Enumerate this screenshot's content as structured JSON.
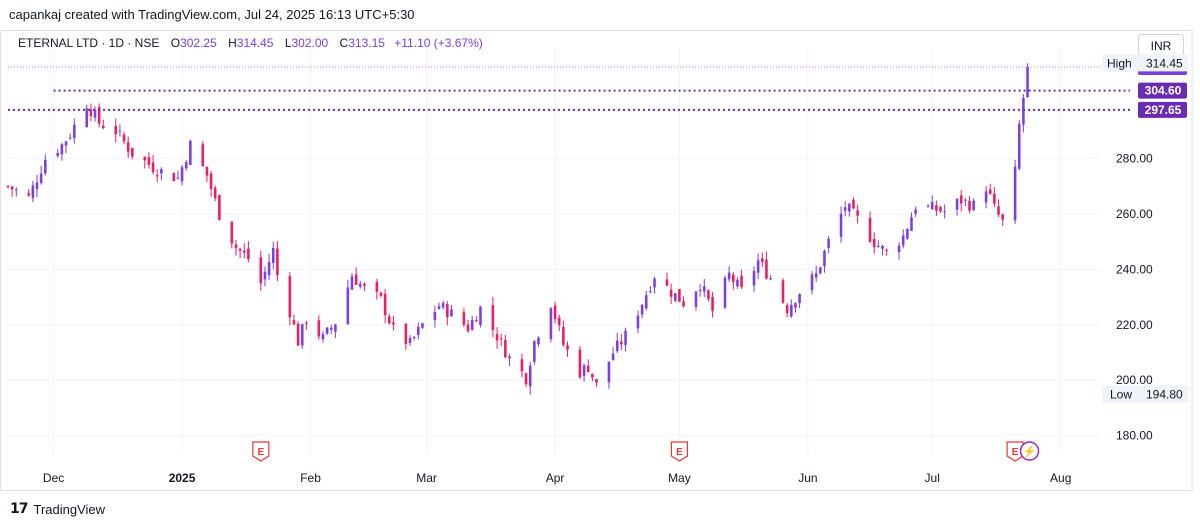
{
  "header": {
    "credit": "capankaj created with TradingView.com, Jul 24, 2025 16:13 UTC+5:30"
  },
  "legend": {
    "symbol": "ETERNAL LTD · 1D · NSE",
    "o_label": "O",
    "o_value": "302.25",
    "h_label": "H",
    "h_value": "314.45",
    "l_label": "L",
    "l_value": "302.00",
    "c_label": "C",
    "c_value": "313.15",
    "change": "+11.10 (+3.67%)"
  },
  "currency": "INR",
  "brand": {
    "logo": "17",
    "name": "TradingView"
  },
  "colors": {
    "up": "#7b3fe4",
    "down": "#e91e63",
    "grid": "#f0f3fa",
    "level": "#6a2bb3"
  },
  "chart_data": {
    "type": "candlestick",
    "title": "ETERNAL LTD · 1D · NSE",
    "ylim": [
      173,
      320
    ],
    "y_ticks": [
      "180.00",
      "200.00",
      "220.00",
      "240.00",
      "260.00",
      "280.00"
    ],
    "x_ticks": [
      {
        "label": "Dec",
        "bold": false,
        "at": "2024-12-01"
      },
      {
        "label": "2025",
        "bold": true,
        "at": "2025-01-01"
      },
      {
        "label": "Feb",
        "bold": false,
        "at": "2025-02-01"
      },
      {
        "label": "Mar",
        "bold": false,
        "at": "2025-03-01"
      },
      {
        "label": "Apr",
        "bold": false,
        "at": "2025-04-01"
      },
      {
        "label": "May",
        "bold": false,
        "at": "2025-05-01"
      },
      {
        "label": "Jun",
        "bold": false,
        "at": "2025-06-01"
      },
      {
        "label": "Jul",
        "bold": false,
        "at": "2025-07-01"
      },
      {
        "label": "Aug",
        "bold": false,
        "at": "2025-08-01"
      }
    ],
    "date_range": [
      "2024-11-20",
      "2025-08-10"
    ],
    "close_path": [
      [
        "2024-11-20",
        270
      ],
      [
        "2024-11-25",
        266
      ],
      [
        "2024-11-29",
        280
      ],
      [
        "2024-12-03",
        285
      ],
      [
        "2024-12-05",
        289
      ],
      [
        "2024-12-09",
        300
      ],
      [
        "2024-12-12",
        293
      ],
      [
        "2024-12-16",
        290
      ],
      [
        "2024-12-20",
        282
      ],
      [
        "2024-12-26",
        276
      ],
      [
        "2024-12-31",
        273
      ],
      [
        "2025-01-03",
        285
      ],
      [
        "2025-01-07",
        274
      ],
      [
        "2025-01-10",
        260
      ],
      [
        "2025-01-14",
        248
      ],
      [
        "2025-01-17",
        244
      ],
      [
        "2025-01-20",
        235
      ],
      [
        "2025-01-23",
        247
      ],
      [
        "2025-01-24",
        238
      ],
      [
        "2025-01-27",
        225
      ],
      [
        "2025-01-29",
        214
      ],
      [
        "2025-01-31",
        222
      ],
      [
        "2025-02-04",
        215
      ],
      [
        "2025-02-07",
        221
      ],
      [
        "2025-02-11",
        238
      ],
      [
        "2025-02-14",
        233
      ],
      [
        "2025-02-18",
        229
      ],
      [
        "2025-02-21",
        218
      ],
      [
        "2025-02-25",
        213
      ],
      [
        "2025-02-28",
        220
      ],
      [
        "2025-03-04",
        227
      ],
      [
        "2025-03-07",
        224
      ],
      [
        "2025-03-11",
        219
      ],
      [
        "2025-03-14",
        226
      ],
      [
        "2025-03-18",
        216
      ],
      [
        "2025-03-21",
        208
      ],
      [
        "2025-03-25",
        201
      ],
      [
        "2025-03-27",
        214
      ],
      [
        "2025-03-31",
        228
      ],
      [
        "2025-04-03",
        213
      ],
      [
        "2025-04-07",
        203
      ],
      [
        "2025-04-09",
        205
      ],
      [
        "2025-04-11",
        198
      ],
      [
        "2025-04-15",
        210
      ],
      [
        "2025-04-18",
        216
      ],
      [
        "2025-04-22",
        228
      ],
      [
        "2025-04-25",
        238
      ],
      [
        "2025-04-29",
        232
      ],
      [
        "2025-05-02",
        228
      ],
      [
        "2025-05-06",
        235
      ],
      [
        "2025-05-09",
        225
      ],
      [
        "2025-05-13",
        238
      ],
      [
        "2025-05-16",
        232
      ],
      [
        "2025-05-20",
        243
      ],
      [
        "2025-05-23",
        237
      ],
      [
        "2025-05-27",
        226
      ],
      [
        "2025-05-30",
        232
      ],
      [
        "2025-06-03",
        238
      ],
      [
        "2025-06-06",
        250
      ],
      [
        "2025-06-10",
        263
      ],
      [
        "2025-06-13",
        258
      ],
      [
        "2025-06-17",
        250
      ],
      [
        "2025-06-20",
        246
      ],
      [
        "2025-06-24",
        252
      ],
      [
        "2025-06-27",
        263
      ],
      [
        "2025-07-01",
        262
      ],
      [
        "2025-07-04",
        261
      ],
      [
        "2025-07-08",
        265
      ],
      [
        "2025-07-11",
        263
      ],
      [
        "2025-07-14",
        270
      ],
      [
        "2025-07-16",
        262
      ],
      [
        "2025-07-18",
        257
      ],
      [
        "2025-07-21",
        275
      ],
      [
        "2025-07-22",
        292
      ],
      [
        "2025-07-23",
        302
      ],
      [
        "2025-07-24",
        313.15
      ]
    ],
    "last_bar": {
      "date": "2025-07-24",
      "open": 302.25,
      "high": 314.45,
      "low": 302.0,
      "close": 313.15
    },
    "price_labels": [
      {
        "text": "313.15",
        "value": 313.15,
        "kind": "last"
      },
      {
        "text": "304.60",
        "value": 304.6,
        "kind": "level"
      },
      {
        "text": "297.65",
        "value": 297.65,
        "kind": "level"
      }
    ],
    "high": {
      "label": "High",
      "text": "314.45",
      "value": 314.45
    },
    "low": {
      "label": "Low",
      "text": "194.80",
      "value": 194.8
    },
    "levels": [
      {
        "value": 304.6,
        "from": "2024-12-01",
        "style": "dotted"
      },
      {
        "value": 297.65,
        "from": "2024-11-20",
        "style": "dotted"
      },
      {
        "value": 313.15,
        "from": "2024-11-20",
        "style": "thin-dotted"
      }
    ],
    "events": [
      {
        "label": "E",
        "date": "2025-01-20",
        "kind": "earnings"
      },
      {
        "label": "E",
        "date": "2025-05-01",
        "kind": "earnings"
      },
      {
        "label": "E",
        "date": "2025-07-21",
        "kind": "earnings"
      },
      {
        "label": "⚡",
        "date": "2025-07-24",
        "kind": "split"
      }
    ]
  }
}
